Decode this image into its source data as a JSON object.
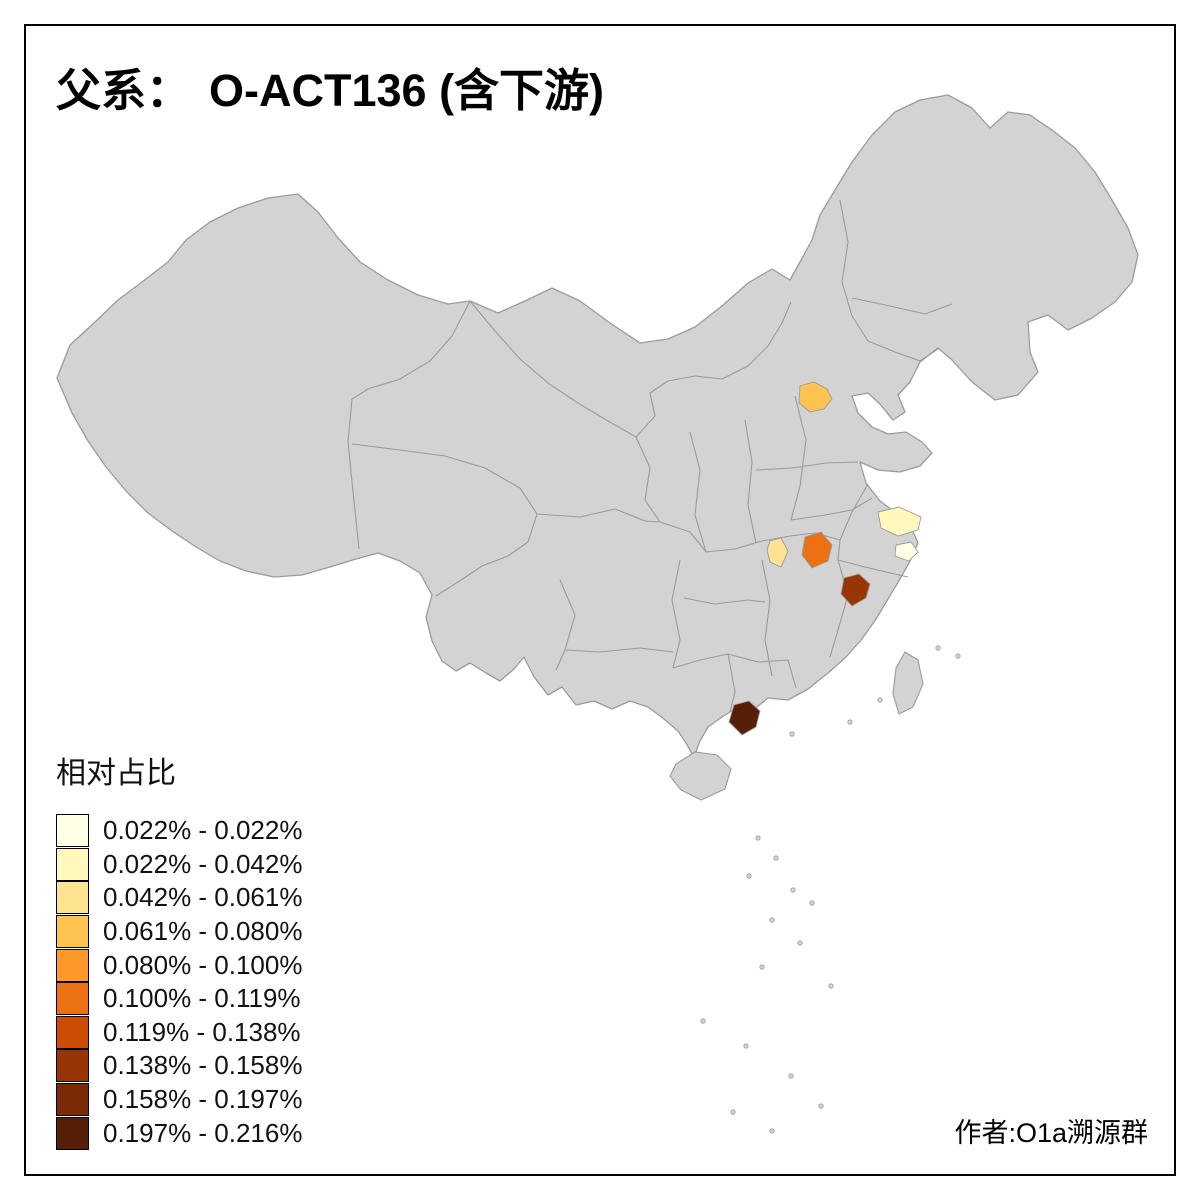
{
  "title": {
    "prefix": "父系：",
    "main": "O-ACT136 (含下游)"
  },
  "legend": {
    "title": "相对占比",
    "entries": [
      {
        "label": "0.022% - 0.022%",
        "color": "#FFFFE5"
      },
      {
        "label": "0.022% - 0.042%",
        "color": "#FFF7BC"
      },
      {
        "label": "0.042% - 0.061%",
        "color": "#FEE391"
      },
      {
        "label": "0.061% - 0.080%",
        "color": "#FEC44F"
      },
      {
        "label": "0.080% - 0.100%",
        "color": "#FE9929"
      },
      {
        "label": "0.100% - 0.119%",
        "color": "#EC7014"
      },
      {
        "label": "0.119% - 0.138%",
        "color": "#CC4C02"
      },
      {
        "label": "0.138% - 0.158%",
        "color": "#993404"
      },
      {
        "label": "0.158% - 0.197%",
        "color": "#7A2B05"
      },
      {
        "label": "0.197% - 0.216%",
        "color": "#571F06"
      }
    ]
  },
  "credit": "作者:O1a溯源群",
  "map": {
    "base_fill": "#D3D3D3",
    "border_color": "#9B9B9B",
    "background": "#FFFFFF",
    "highlights": [
      {
        "id": "region-1",
        "color": "#FEC44F"
      },
      {
        "id": "region-2",
        "color": "#FFF7BC"
      },
      {
        "id": "region-3",
        "color": "#FFFFE5"
      },
      {
        "id": "region-4",
        "color": "#FEE391"
      },
      {
        "id": "region-5",
        "color": "#EC7014"
      },
      {
        "id": "region-6",
        "color": "#993404"
      },
      {
        "id": "region-7",
        "color": "#571F06"
      }
    ]
  }
}
